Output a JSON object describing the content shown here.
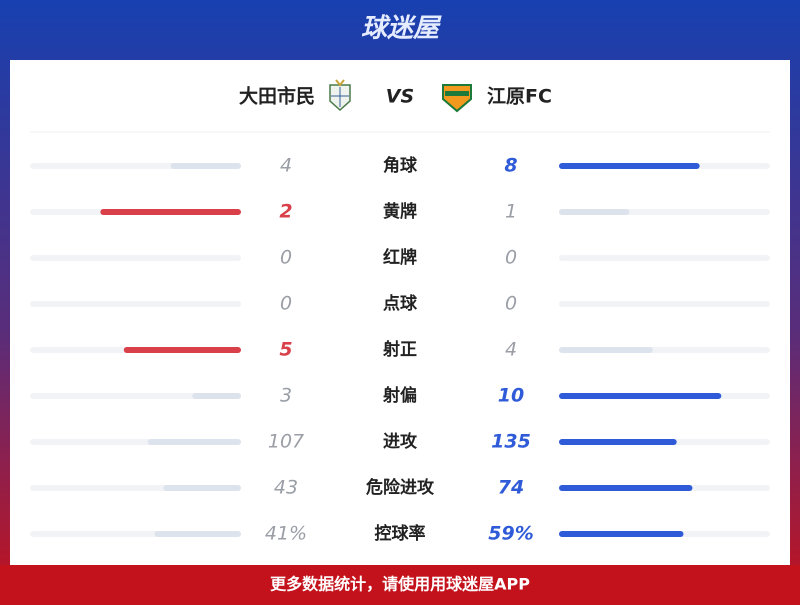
{
  "header": {
    "brand": "球迷屋"
  },
  "match": {
    "home": "大田市民",
    "vs": "VS",
    "away": "江原FC"
  },
  "stats": [
    {
      "name": "角球",
      "home": 4,
      "away": 8
    },
    {
      "name": "黄牌",
      "home": 2,
      "away": 1
    },
    {
      "name": "红牌",
      "home": 0,
      "away": 0
    },
    {
      "name": "点球",
      "home": 0,
      "away": 0
    },
    {
      "name": "射正",
      "home": 5,
      "away": 4
    },
    {
      "name": "射偏",
      "home": 3,
      "away": 10
    },
    {
      "name": "进攻",
      "home": 107,
      "away": 135
    },
    {
      "name": "危险进攻",
      "home": 43,
      "away": 74
    },
    {
      "name": "控球率",
      "home": 41,
      "away": 59,
      "home_label": "41%",
      "away_label": "59%"
    }
  ],
  "footer": {
    "text": "更多数据统计，请使用用球迷屋APP"
  }
}
